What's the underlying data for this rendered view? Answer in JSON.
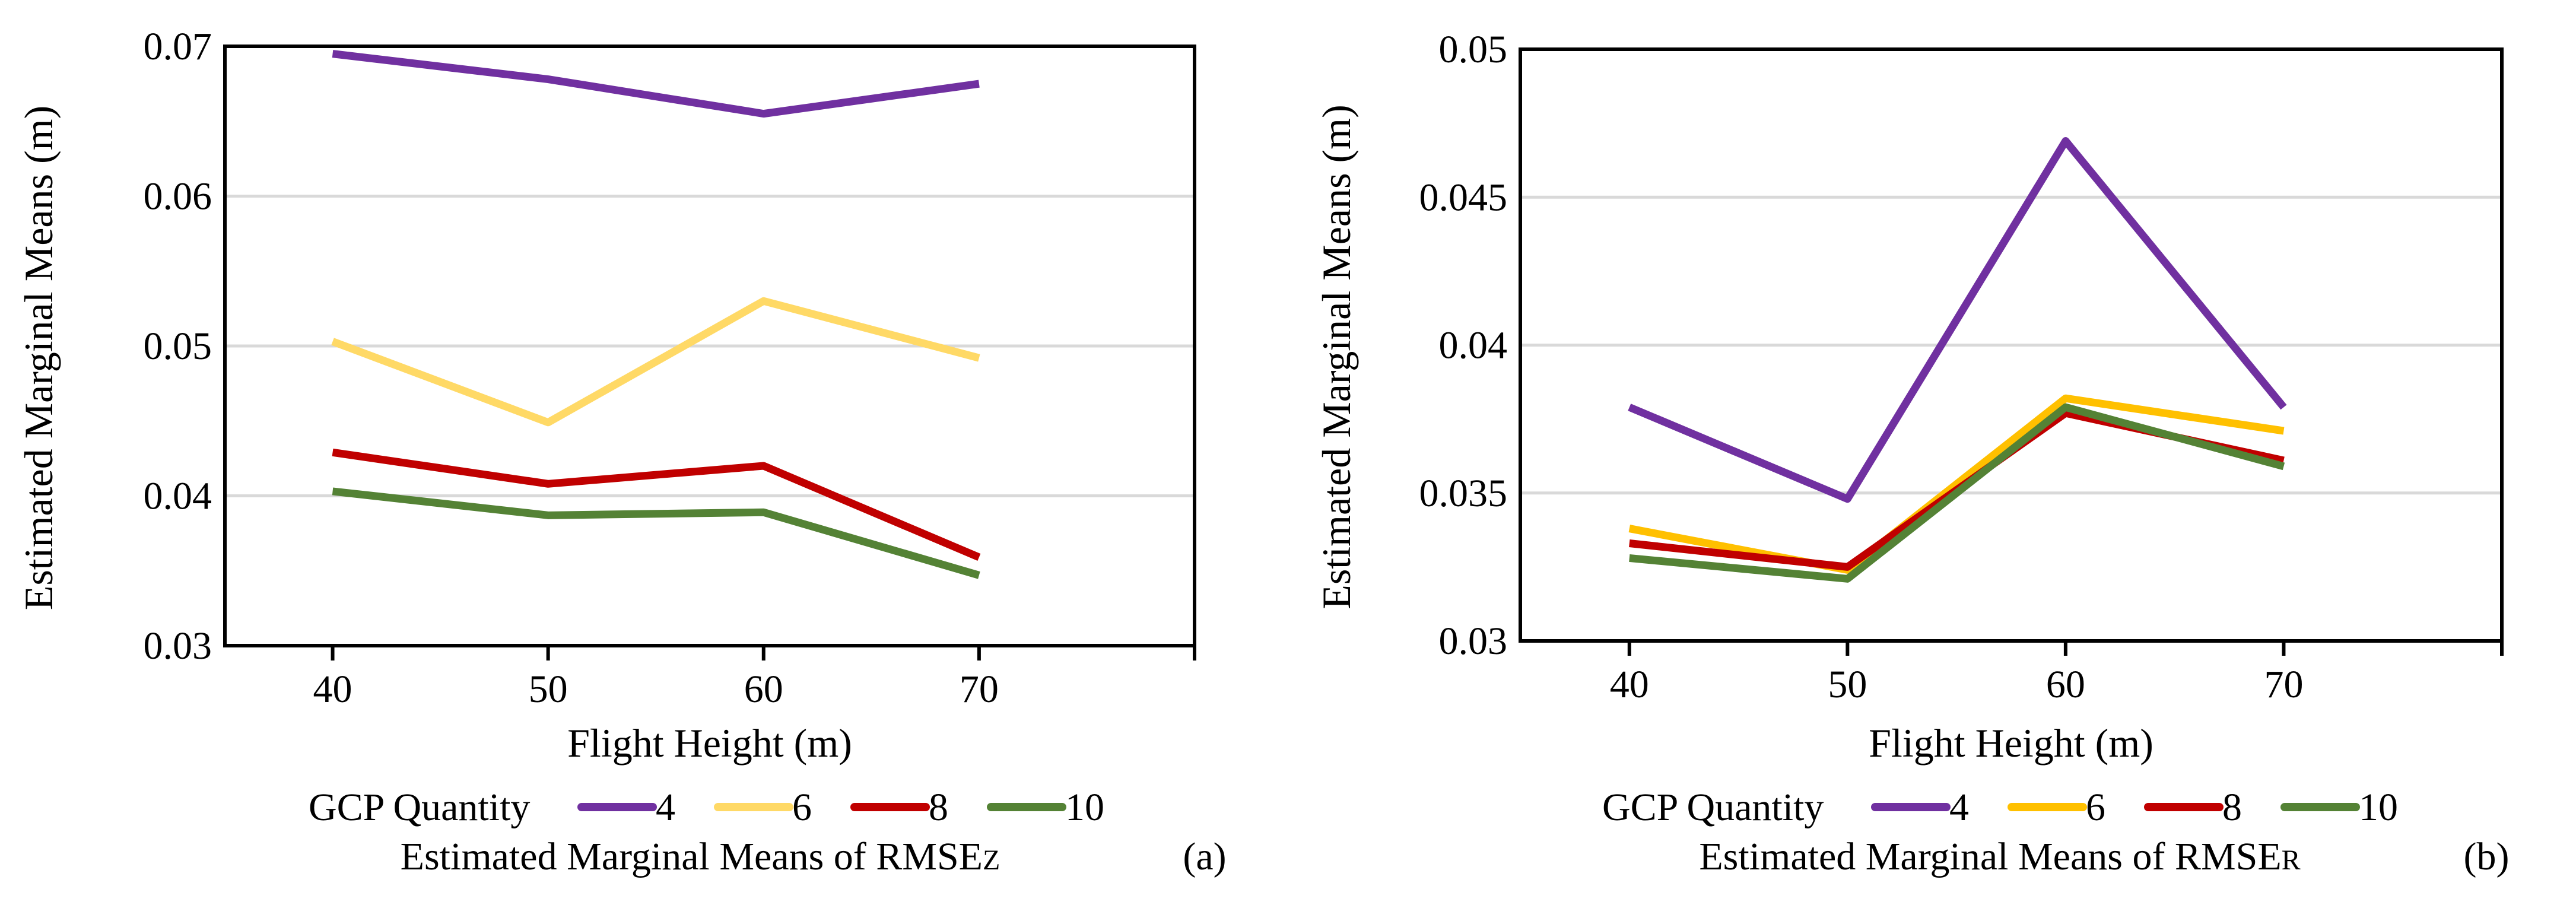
{
  "chart_data": [
    {
      "type": "line",
      "panel_label": "(a)",
      "caption": {
        "text": "Estimated Marginal Means of RMSE",
        "sub": "Z"
      },
      "xlabel": "Flight Height (m)",
      "ylabel": "Estimated Marginal Means (m)",
      "categories": [
        "40",
        "50",
        "60",
        "70"
      ],
      "ylim": [
        0.03,
        0.07
      ],
      "yticks": [
        0.03,
        0.04,
        0.05,
        0.06,
        0.07
      ],
      "ytick_labels": [
        "0.03",
        "0.04",
        "0.05",
        "0.06",
        "0.07"
      ],
      "grid": true,
      "legend_title": "GCP Quantity",
      "legend_placement": "bottom",
      "series": [
        {
          "name": "4",
          "color": "#7030A0",
          "values": [
            0.0695,
            0.0678,
            0.0655,
            0.0675
          ]
        },
        {
          "name": "6",
          "color": "#FFD966",
          "values": [
            0.0503,
            0.0449,
            0.053,
            0.0492
          ]
        },
        {
          "name": "8",
          "color": "#C00000",
          "values": [
            0.0429,
            0.0408,
            0.042,
            0.0359
          ]
        },
        {
          "name": "10",
          "color": "#548235",
          "values": [
            0.0403,
            0.0387,
            0.0389,
            0.0347
          ]
        }
      ]
    },
    {
      "type": "line",
      "panel_label": "(b)",
      "caption": {
        "text": "Estimated Marginal Means of RMSE",
        "sub": "R"
      },
      "xlabel": "Flight Height (m)",
      "ylabel": "Estimated Marginal Means (m)",
      "categories": [
        "40",
        "50",
        "60",
        "70"
      ],
      "ylim": [
        0.03,
        0.05
      ],
      "yticks": [
        0.03,
        0.035,
        0.04,
        0.045,
        0.05
      ],
      "ytick_labels": [
        "0.03",
        "0.035",
        "0.04",
        "0.045",
        "0.05"
      ],
      "grid": true,
      "legend_title": "GCP Quantity",
      "legend_placement": "bottom",
      "series": [
        {
          "name": "4",
          "color": "#7030A0",
          "values": [
            0.0379,
            0.0348,
            0.0469,
            0.0379
          ]
        },
        {
          "name": "6",
          "color": "#FFC000",
          "values": [
            0.0338,
            0.0324,
            0.0382,
            0.0371
          ]
        },
        {
          "name": "8",
          "color": "#C00000",
          "values": [
            0.0333,
            0.0325,
            0.0377,
            0.0361
          ]
        },
        {
          "name": "10",
          "color": "#548235",
          "values": [
            0.0328,
            0.0321,
            0.0379,
            0.0359
          ]
        }
      ]
    }
  ]
}
